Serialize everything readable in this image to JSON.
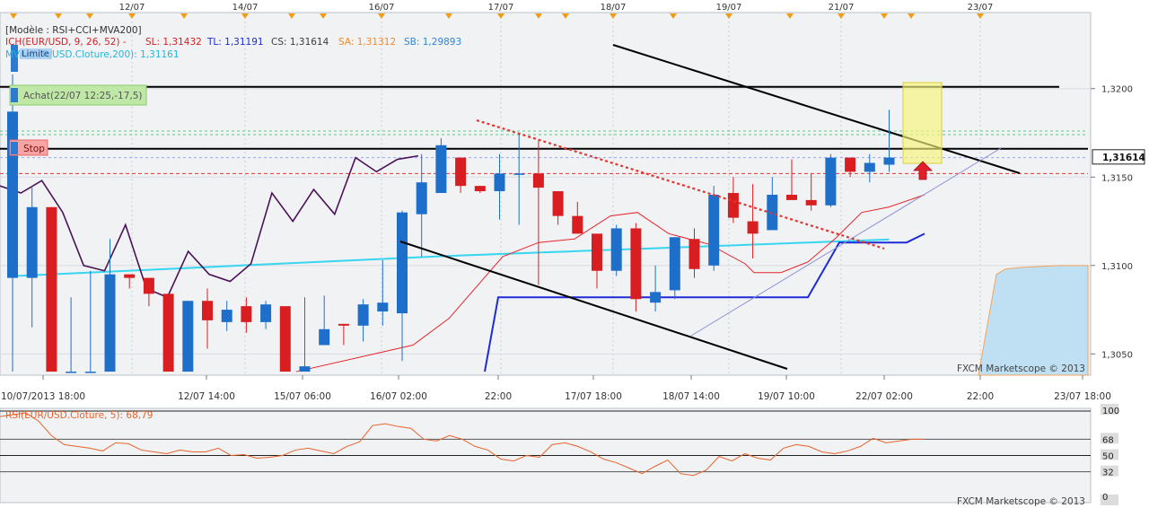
{
  "colors": {
    "background": "#ffffff",
    "plot_bg": "#f0f2f4",
    "up": "#1e6fc9",
    "down": "#d91e22",
    "rsi_line": "#e8632b",
    "mva200": "#37d6f0",
    "tenkan": "#e8232a",
    "kijun": "#1f2bd3",
    "cci_line": "#4a1257",
    "trendline": "#000000",
    "cloud": "#bfe0f2",
    "highlight": "#f7f57a",
    "level_black": "#000000",
    "level_red": "#e3342f",
    "level_green": "#6cc28a",
    "level_blue": "#9aa7ee",
    "text_dark": "#333333",
    "price_box": "#ffffff"
  },
  "header": {
    "model": "[Modèle : RSI+CCI+MVA200]",
    "ich": "ICH(EUR/USD, 9, 26, 52) -",
    "sl": "SL: 1,31432",
    "tl": "TL: 1,31191",
    "cs": "CS: 1,31614",
    "sa": "SA: 1,31312",
    "sb": "SB: 1,29893",
    "mva": "MVA(EUR/USD.Cloture,200): 1,31161",
    "limite": "Limite"
  },
  "order_labels": {
    "achat": "Achat(22/07 12:25,-17,5)",
    "stop": "Stop"
  },
  "top_dates": [
    "12/07",
    "14/07",
    "16/07",
    "17/07",
    "18/07",
    "19/07",
    "21/07",
    "23/07"
  ],
  "bottom_dates": [
    "10/07/2013 18:00",
    "12/07 14:00",
    "15/07 06:00",
    "16/07 02:00",
    "22:00",
    "17/07 18:00",
    "18/07 14:00",
    "19/07 10:00",
    "22/07 02:00",
    "22:00",
    "23/07 18:00"
  ],
  "watermark": "FXCM Marketscope © 2013",
  "current_price_label": "1,31614",
  "price_axis_labels": [
    "1,3200",
    "1,3150",
    "1,3100",
    "1,3050"
  ],
  "rsi_header": "RSI(EUR/USD.Cloture, 5): 68,79",
  "rsi_axis_labels": [
    "100",
    "68",
    "50",
    "32",
    "0"
  ],
  "chart_data": {
    "type": "candlestick",
    "ylim": [
      1.3038,
      1.3243
    ],
    "candles": [
      {
        "o": 1.3093,
        "h": 1.3208,
        "l": 1.304,
        "c": 1.3187
      },
      {
        "o": 1.3093,
        "h": 1.3145,
        "l": 1.3065,
        "c": 1.3133
      },
      {
        "o": 1.3133,
        "h": 1.3133,
        "l": 1.304,
        "c": 1.304
      },
      {
        "o": 1.304,
        "h": 1.3082,
        "l": 1.304,
        "c": 1.304
      },
      {
        "o": 1.304,
        "h": 1.3097,
        "l": 1.304,
        "c": 1.304
      },
      {
        "o": 1.304,
        "h": 1.3115,
        "l": 1.304,
        "c": 1.3095
      },
      {
        "o": 1.3095,
        "h": 1.3095,
        "l": 1.3087,
        "c": 1.3093
      },
      {
        "o": 1.3093,
        "h": 1.3093,
        "l": 1.3077,
        "c": 1.3084
      },
      {
        "o": 1.3084,
        "h": 1.3084,
        "l": 1.304,
        "c": 1.304
      },
      {
        "o": 1.304,
        "h": 1.308,
        "l": 1.304,
        "c": 1.308
      },
      {
        "o": 1.308,
        "h": 1.3087,
        "l": 1.3053,
        "c": 1.3069
      },
      {
        "o": 1.3068,
        "h": 1.308,
        "l": 1.3063,
        "c": 1.3075
      },
      {
        "o": 1.3077,
        "h": 1.3082,
        "l": 1.3062,
        "c": 1.3068
      },
      {
        "o": 1.3068,
        "h": 1.308,
        "l": 1.3064,
        "c": 1.3078
      },
      {
        "o": 1.3077,
        "h": 1.3077,
        "l": 1.304,
        "c": 1.304
      },
      {
        "o": 1.304,
        "h": 1.3082,
        "l": 1.304,
        "c": 1.3043
      },
      {
        "o": 1.3055,
        "h": 1.3083,
        "l": 1.3055,
        "c": 1.3064
      },
      {
        "o": 1.3067,
        "h": 1.3067,
        "l": 1.3055,
        "c": 1.3066
      },
      {
        "o": 1.3066,
        "h": 1.3081,
        "l": 1.3057,
        "c": 1.3078
      },
      {
        "o": 1.3074,
        "h": 1.3103,
        "l": 1.3066,
        "c": 1.3079
      },
      {
        "o": 1.3073,
        "h": 1.3131,
        "l": 1.3046,
        "c": 1.313
      },
      {
        "o": 1.3129,
        "h": 1.3163,
        "l": 1.3105,
        "c": 1.3147
      },
      {
        "o": 1.3141,
        "h": 1.3172,
        "l": 1.3141,
        "c": 1.3168
      },
      {
        "o": 1.3161,
        "h": 1.3161,
        "l": 1.3141,
        "c": 1.3145
      },
      {
        "o": 1.3145,
        "h": 1.3145,
        "l": 1.3141,
        "c": 1.3142
      },
      {
        "o": 1.3142,
        "h": 1.3163,
        "l": 1.3126,
        "c": 1.3152
      },
      {
        "o": 1.3152,
        "h": 1.3175,
        "l": 1.3123,
        "c": 1.3152
      },
      {
        "o": 1.3152,
        "h": 1.3171,
        "l": 1.3089,
        "c": 1.3144
      },
      {
        "o": 1.3142,
        "h": 1.3142,
        "l": 1.3123,
        "c": 1.3128
      },
      {
        "o": 1.3128,
        "h": 1.3136,
        "l": 1.3118,
        "c": 1.3118
      },
      {
        "o": 1.3118,
        "h": 1.3118,
        "l": 1.3087,
        "c": 1.3097
      },
      {
        "o": 1.3097,
        "h": 1.3123,
        "l": 1.3094,
        "c": 1.3121
      },
      {
        "o": 1.3121,
        "h": 1.3124,
        "l": 1.3074,
        "c": 1.3081
      },
      {
        "o": 1.3079,
        "h": 1.31,
        "l": 1.3074,
        "c": 1.3085
      },
      {
        "o": 1.3086,
        "h": 1.3116,
        "l": 1.3081,
        "c": 1.3116
      },
      {
        "o": 1.3115,
        "h": 1.3121,
        "l": 1.3093,
        "c": 1.3098
      },
      {
        "o": 1.31,
        "h": 1.3145,
        "l": 1.3097,
        "c": 1.314
      },
      {
        "o": 1.3141,
        "h": 1.315,
        "l": 1.3124,
        "c": 1.3127
      },
      {
        "o": 1.3125,
        "h": 1.3146,
        "l": 1.3104,
        "c": 1.3118
      },
      {
        "o": 1.312,
        "h": 1.315,
        "l": 1.312,
        "c": 1.314
      },
      {
        "o": 1.314,
        "h": 1.316,
        "l": 1.3138,
        "c": 1.3137
      },
      {
        "o": 1.3137,
        "h": 1.3152,
        "l": 1.3131,
        "c": 1.3134
      },
      {
        "o": 1.3134,
        "h": 1.3163,
        "l": 1.3133,
        "c": 1.3161
      },
      {
        "o": 1.3161,
        "h": 1.3161,
        "l": 1.315,
        "c": 1.3153
      },
      {
        "o": 1.3153,
        "h": 1.3163,
        "l": 1.3147,
        "c": 1.3158
      },
      {
        "o": 1.3157,
        "h": 1.3188,
        "l": 1.3153,
        "c": 1.3161
      }
    ],
    "levels": {
      "resistance_black": 1.3201,
      "support_black": 1.3166,
      "green_dotted": 1.3176,
      "blue_dotted": 1.3161,
      "red_dotted": 1.3152
    },
    "rsi": {
      "ylim": [
        0,
        100
      ],
      "levels": [
        100,
        68,
        50,
        32,
        0
      ],
      "values": [
        93,
        95,
        97,
        88,
        72,
        62,
        60,
        58,
        55,
        64,
        63,
        56,
        54,
        52,
        56,
        54,
        54,
        58,
        50,
        51,
        47,
        48,
        50,
        56,
        58,
        55,
        52,
        60,
        65,
        83,
        85,
        82,
        80,
        68,
        66,
        72,
        68,
        60,
        56,
        46,
        44,
        50,
        48,
        62,
        64,
        60,
        54,
        46,
        42,
        36,
        30,
        38,
        45,
        30,
        28,
        34,
        49,
        44,
        52,
        47,
        45,
        58,
        62,
        60,
        54,
        52,
        55,
        60,
        69,
        64,
        66,
        68,
        68
      ]
    },
    "current_price": 1.31614
  }
}
